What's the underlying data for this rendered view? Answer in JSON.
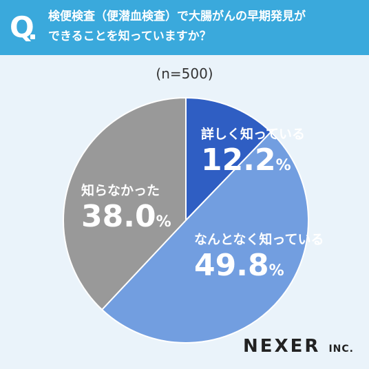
{
  "header": {
    "mark": "Q",
    "question_line1": "検便検査（便潜血検査）で大腸がんの早期発見が",
    "question_line2": "できることを知っていますか？"
  },
  "sample_size": "(n=500)",
  "chart_data": {
    "type": "pie",
    "title": "検便検査（便潜血検査）で大腸がんの早期発見ができることを知っていますか？",
    "slices": [
      {
        "label": "詳しく知っている",
        "value": 12.2,
        "color": "#2f5ec3"
      },
      {
        "label": "なんとなく知っている",
        "value": 49.8,
        "color": "#729ee0"
      },
      {
        "label": "知らなかった",
        "value": 38.0,
        "color": "#999999"
      }
    ]
  },
  "labels": {
    "s0_value": "12.2",
    "s1_value": "49.8",
    "s2_value": "38.0",
    "percent": "%"
  },
  "logo": {
    "name": "NEXER",
    "suffix": "INC."
  }
}
